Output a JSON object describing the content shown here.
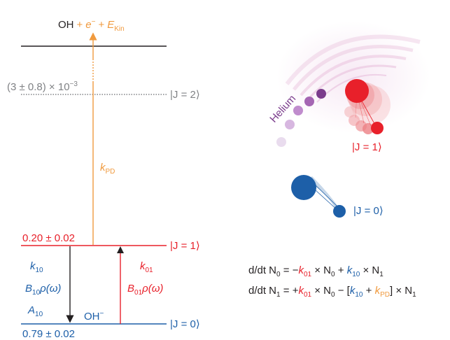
{
  "colors": {
    "black": "#231f20",
    "grey": "#808285",
    "red": "#e8202a",
    "blue": "#1d5fa8",
    "orange": "#f09a3e",
    "purple": "#7b3c8c"
  },
  "levels": {
    "top": {
      "species": "OH",
      "plus1": "+",
      "electron": "e",
      "electron_sup": "−",
      "plus2": "+",
      "energy": "E",
      "energy_sub": "Kin"
    },
    "j2": {
      "population": "(3 ± 0.8) × 10",
      "population_exp": "−3",
      "label": "|J = 2⟩"
    },
    "j1": {
      "population": "0.20 ± 0.02",
      "label": "|J = 1⟩"
    },
    "j0": {
      "population": "0.79 ± 0.02",
      "label": "|J = 0⟩",
      "species": "OH",
      "species_sup": "−"
    }
  },
  "rates": {
    "k_pd": {
      "k": "k",
      "sub": "PD"
    },
    "k10": {
      "k": "k",
      "sub": "10"
    },
    "b10": {
      "b": "B",
      "sub": "10",
      "rho": "ρ(ω)"
    },
    "a10": {
      "a": "A",
      "sub": "10"
    },
    "k01": {
      "k": "k",
      "sub": "01"
    },
    "b01": {
      "b": "B",
      "sub": "01",
      "rho": "ρ(ω)"
    }
  },
  "illustration": {
    "helium_label": "Helium",
    "j1_label": "|J = 1⟩",
    "j0_label": "|J = 0⟩"
  },
  "equations": {
    "eq1": {
      "lhs": "d/dt N",
      "lhs_sub": "0",
      "eq": " = −",
      "k01": "k",
      "k01_sub": "01",
      "t1": " × N",
      "t1_sub": "0",
      "plus": " + ",
      "k10": "k",
      "k10_sub": "10",
      "t2": " × N",
      "t2_sub": "1"
    },
    "eq2": {
      "lhs": "d/dt N",
      "lhs_sub": "1",
      "eq": " = +",
      "k01": "k",
      "k01_sub": "01",
      "t1": " × N",
      "t1_sub": "0",
      "minus": " − [",
      "k10": "k",
      "k10_sub": "10",
      "plus": " + ",
      "kpd": "k",
      "kpd_sub": "PD",
      "t2": "] × N",
      "t2_sub": "1"
    }
  }
}
